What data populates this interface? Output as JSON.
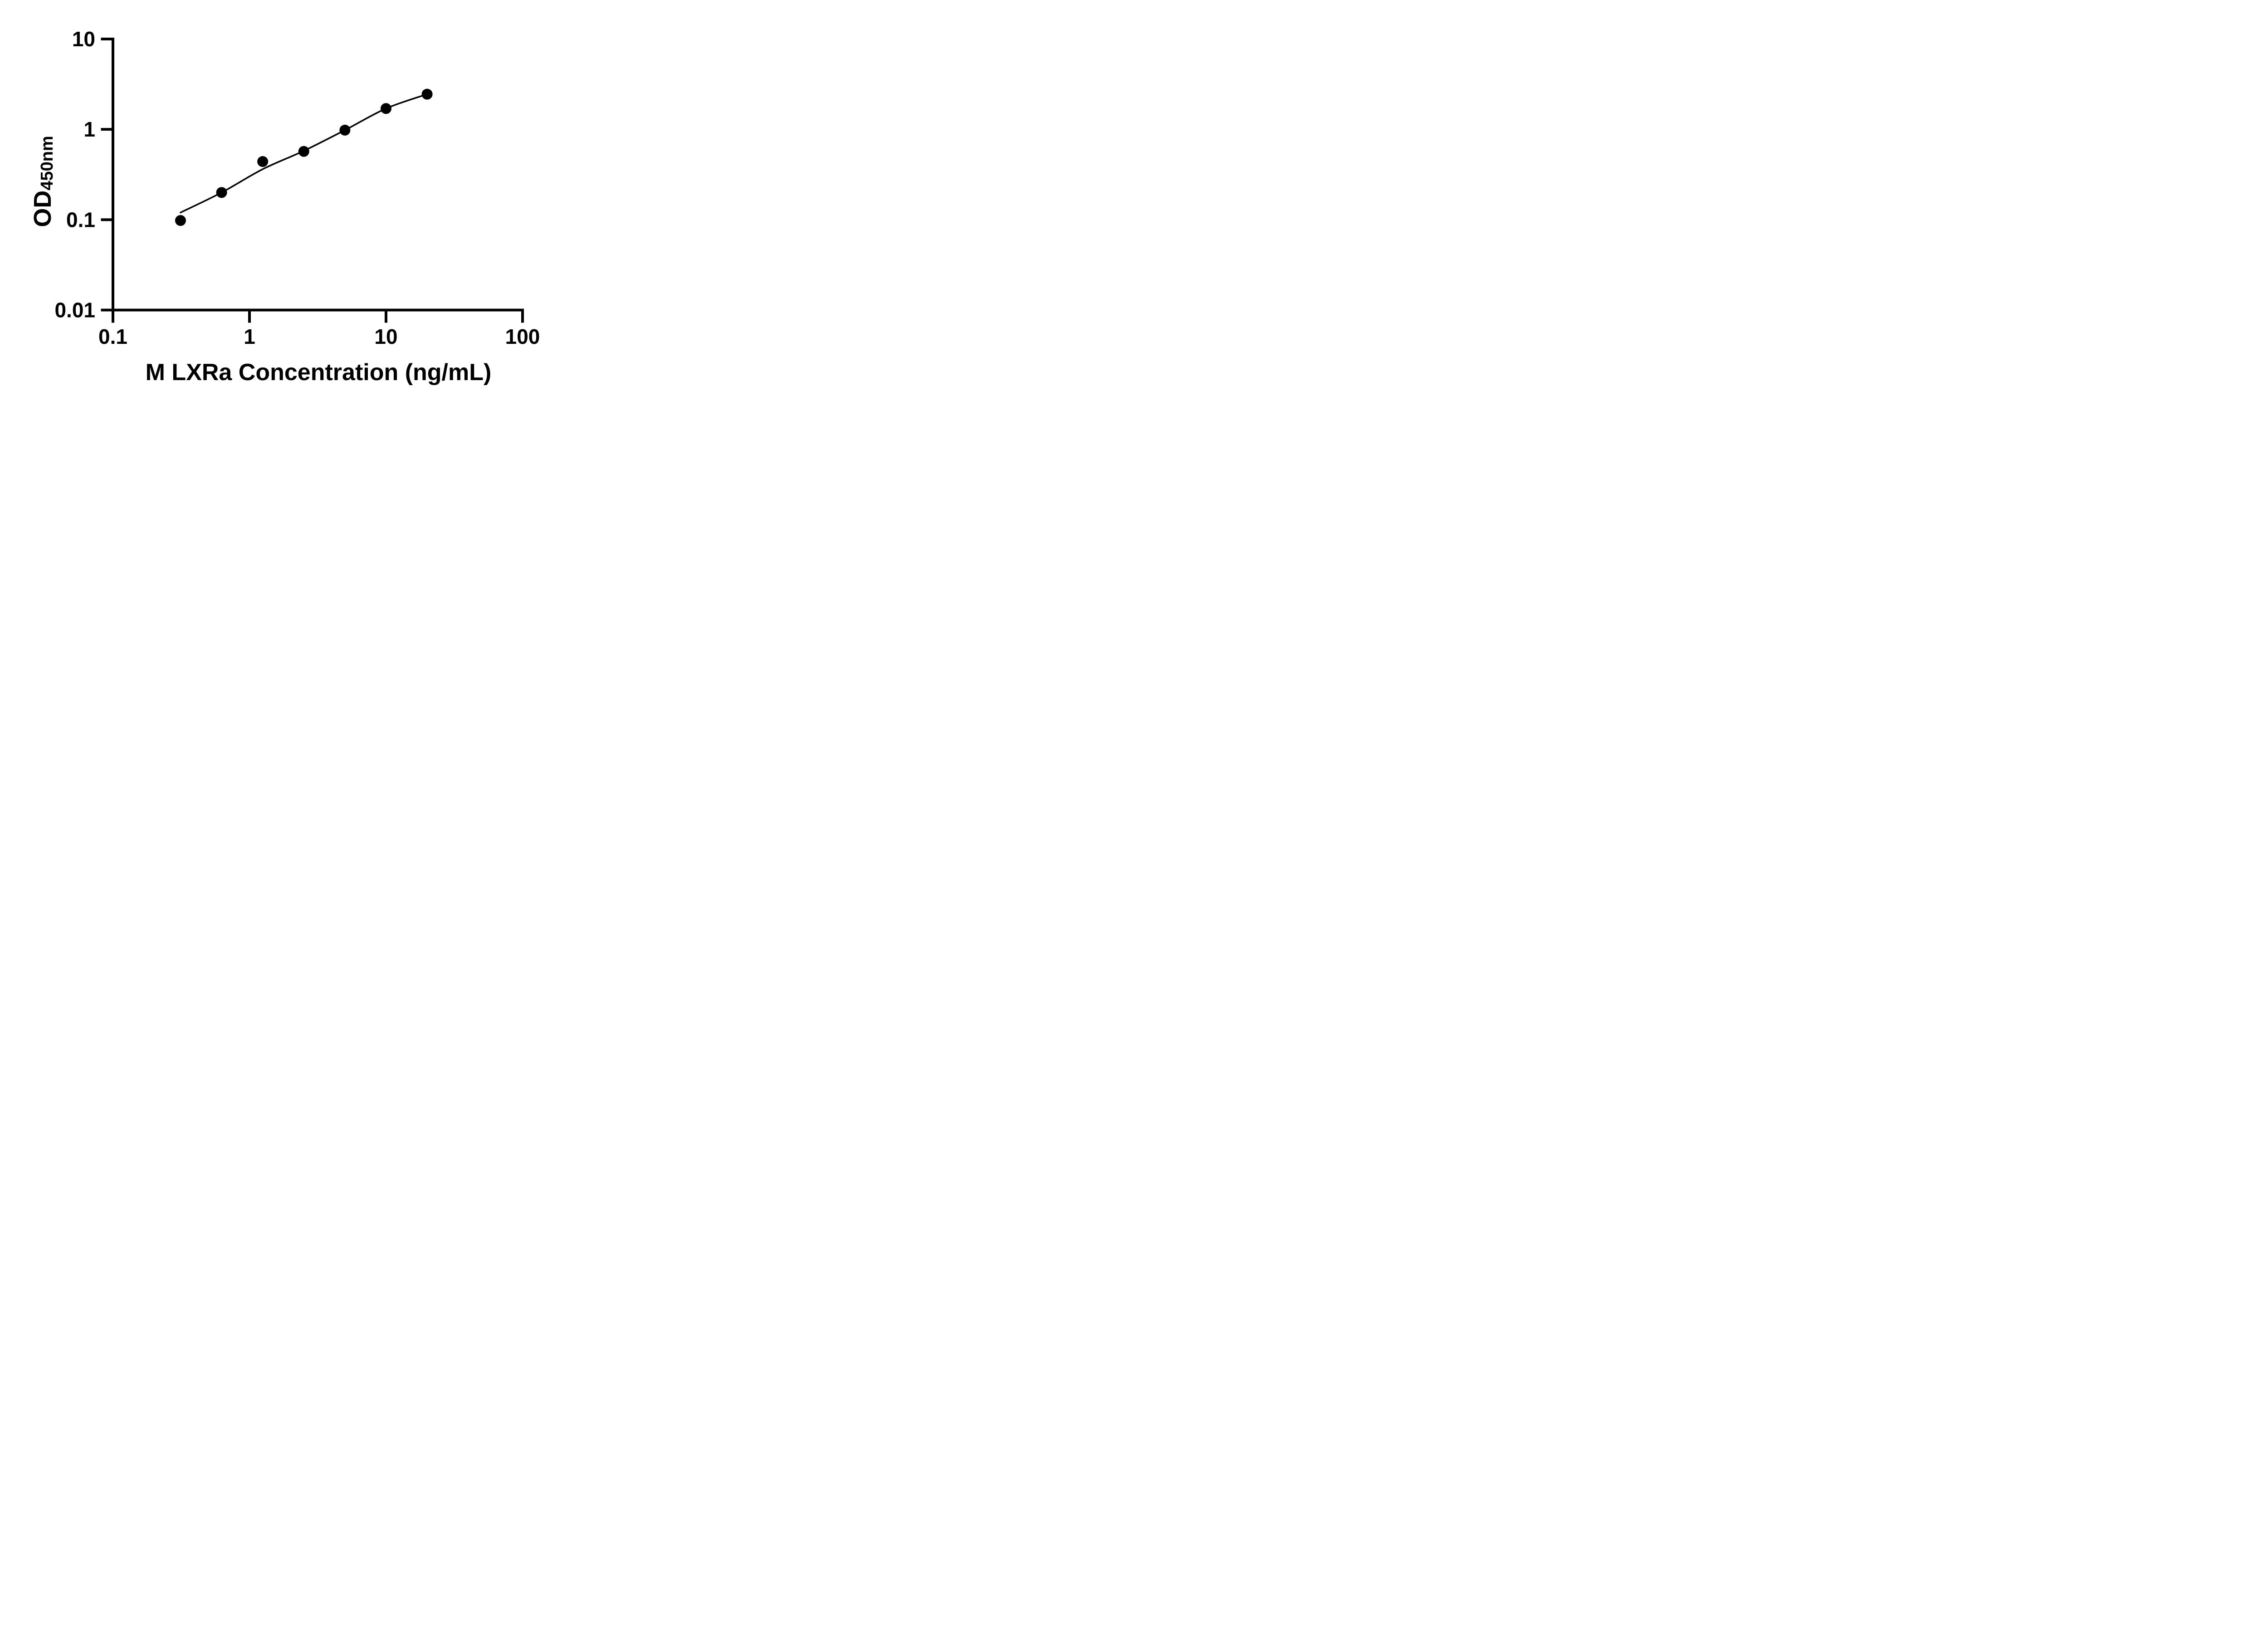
{
  "figure": {
    "background": "#ffffff",
    "x_axis_title": "M LXRa Concentration (ng/mL)",
    "y_axis_title_main": "OD",
    "y_axis_title_sub": "450nm"
  },
  "colors": {
    "axis": "#000000",
    "marker": "#000000",
    "curve": "#000000",
    "background": "#ffffff"
  },
  "chart_data": {
    "type": "scatter",
    "title": "",
    "xlabel": "M LXRa Concentration (ng/mL)",
    "ylabel": "OD450nm",
    "x_scale": "log",
    "y_scale": "log",
    "xlim": [
      0.1,
      100
    ],
    "ylim": [
      0.01,
      10
    ],
    "x_ticks": [
      0.1,
      1,
      10,
      100
    ],
    "x_tick_labels": [
      "0.1",
      "1",
      "10",
      "100"
    ],
    "y_ticks": [
      10,
      1,
      0.1,
      0.01
    ],
    "y_tick_labels": [
      "10",
      "1",
      "0.1",
      "0.01"
    ],
    "grid": false,
    "legend": false,
    "series": [
      {
        "name": "standard-points",
        "plot": "scatter",
        "marker": "circle",
        "color": "#000000",
        "x": [
          0.3125,
          0.625,
          1.25,
          2.5,
          5,
          10,
          20
        ],
        "y": [
          0.098,
          0.2,
          0.44,
          0.57,
          0.98,
          1.7,
          2.45
        ]
      },
      {
        "name": "fit-curve",
        "plot": "line",
        "color": "#000000",
        "x": [
          0.3125,
          0.625,
          1.25,
          2.5,
          5,
          10,
          20
        ],
        "y": [
          0.12,
          0.2,
          0.3625,
          0.578,
          0.98,
          1.7,
          2.45
        ]
      }
    ]
  }
}
